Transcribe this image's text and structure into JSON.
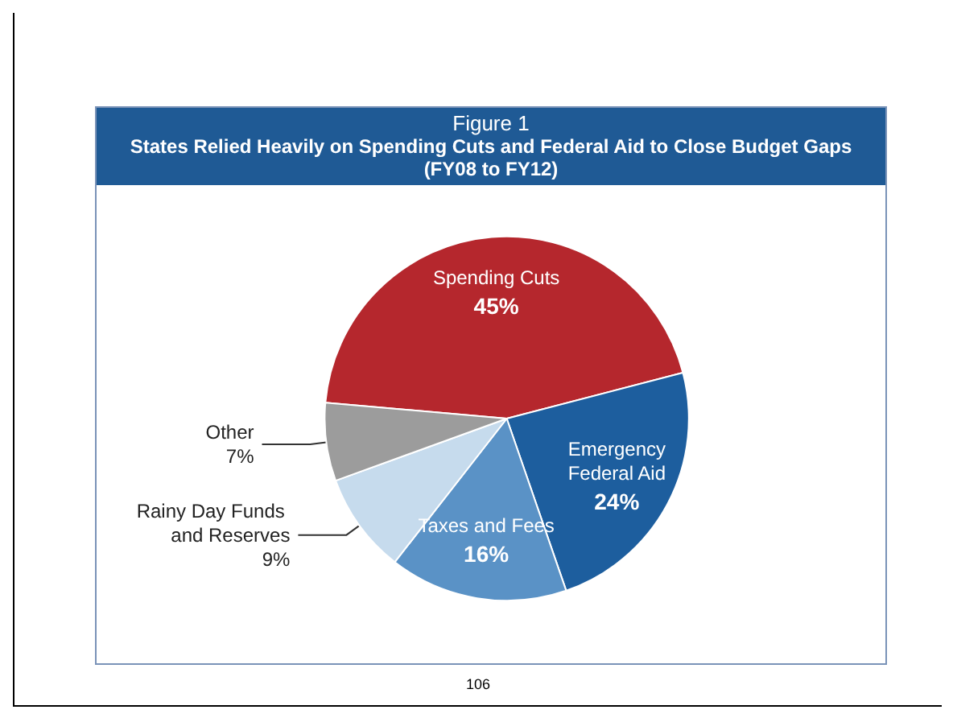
{
  "chart_data": {
    "type": "pie",
    "title": "Figure 1",
    "subtitle": "States Relied Heavily on Spending Cuts and Federal Aid to Close Budget Gaps (FY08 to FY12)",
    "categories": [
      "Spending Cuts",
      "Emergency Federal Aid",
      "Taxes and Fees",
      "Rainy Day Funds and Reserves",
      "Other"
    ],
    "values": [
      45,
      24,
      16,
      9,
      7
    ],
    "value_labels": [
      "45%",
      "24%",
      "16%",
      "9%",
      "7%"
    ],
    "colors": [
      "#b5272d",
      "#1d5e9e",
      "#5a92c6",
      "#c6dbed",
      "#9c9c9c"
    ],
    "annotations": [
      "106"
    ],
    "legend": false
  }
}
